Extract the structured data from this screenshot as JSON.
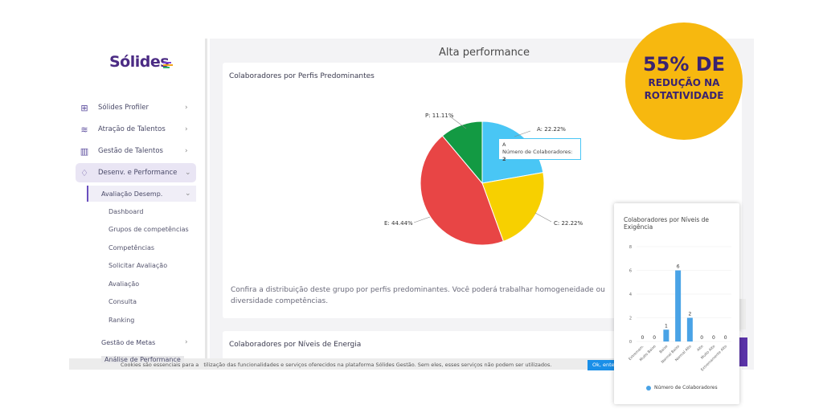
{
  "brand": {
    "name": "Sólides",
    "bar_colors": [
      "#7a3fd1",
      "#f2a31b",
      "#2fb36b",
      "#e34a4a"
    ]
  },
  "sidebar": {
    "items": [
      {
        "label": "Sólides Profiler",
        "icon": "grid-icon"
      },
      {
        "label": "Atração de Talentos",
        "icon": "layers-icon"
      },
      {
        "label": "Gestão de Talentos",
        "icon": "chart-icon"
      },
      {
        "label": "Desenv. e Performance",
        "icon": "rocket-icon"
      }
    ],
    "sub": {
      "label": "Avaliação Desemp."
    },
    "leaves": [
      "Dashboard",
      "Grupos de competências",
      "Competências",
      "Solicitar Avaliação",
      "Avaliação",
      "Consulta",
      "Ranking"
    ],
    "gestao_metas": "Gestão de Metas",
    "analise": "Análise de Performance"
  },
  "main": {
    "page_title": "Alta performance",
    "card1_title": "Colaboradores por Perfis Predominantes",
    "description": "Confira a distribuição deste grupo por perfis predominantes. Você poderá trabalhar homogeneidade ou diversidade competências.",
    "card2_title": "Colaboradores por Níveis de Energia",
    "tooltip": {
      "name": "A",
      "label": "Número de Colaboradores:",
      "value": "2"
    }
  },
  "cookie": {
    "text_left": "Cookies são essenciais para a",
    "text_right": "tilização das funcionalidades e serviços oferecidos na plataforma Sólides Gestão. Sem eles, esses serviços não podem ser utilizados.",
    "button": "Ok, enten"
  },
  "badge": {
    "line1": "55% DE",
    "line2": "REDUÇÃO NA",
    "line3": "ROTATIVIDADE"
  },
  "chart_data": [
    {
      "type": "pie",
      "slices": [
        {
          "label": "A: 22.22%",
          "name": "A",
          "value": 22.22,
          "color": "#49c6f5"
        },
        {
          "label": "C: 22.22%",
          "name": "C",
          "value": 22.22,
          "color": "#f7d000"
        },
        {
          "label": "E: 44.44%",
          "name": "E",
          "value": 44.44,
          "color": "#e84545"
        },
        {
          "label": "P: 11.11%",
          "name": "P",
          "value": 11.11,
          "color": "#139a43"
        }
      ]
    },
    {
      "type": "bar",
      "title": "Colaboradores por Níveis de Exigência",
      "categories": [
        "Extremam.",
        "Muito Baixo",
        "Baixo",
        "Normal Baixo",
        "Normal Alto",
        "Alto",
        "Muito Alto",
        "Extremamente Alto"
      ],
      "series": [
        {
          "name": "Número de Colaboradores",
          "values": [
            0,
            0,
            1,
            6,
            2,
            0,
            0,
            0
          ]
        }
      ],
      "ylim": [
        0,
        8
      ],
      "yticks": [
        "0",
        "2",
        "4",
        "6",
        "8"
      ],
      "color": "#49a3e6"
    }
  ]
}
